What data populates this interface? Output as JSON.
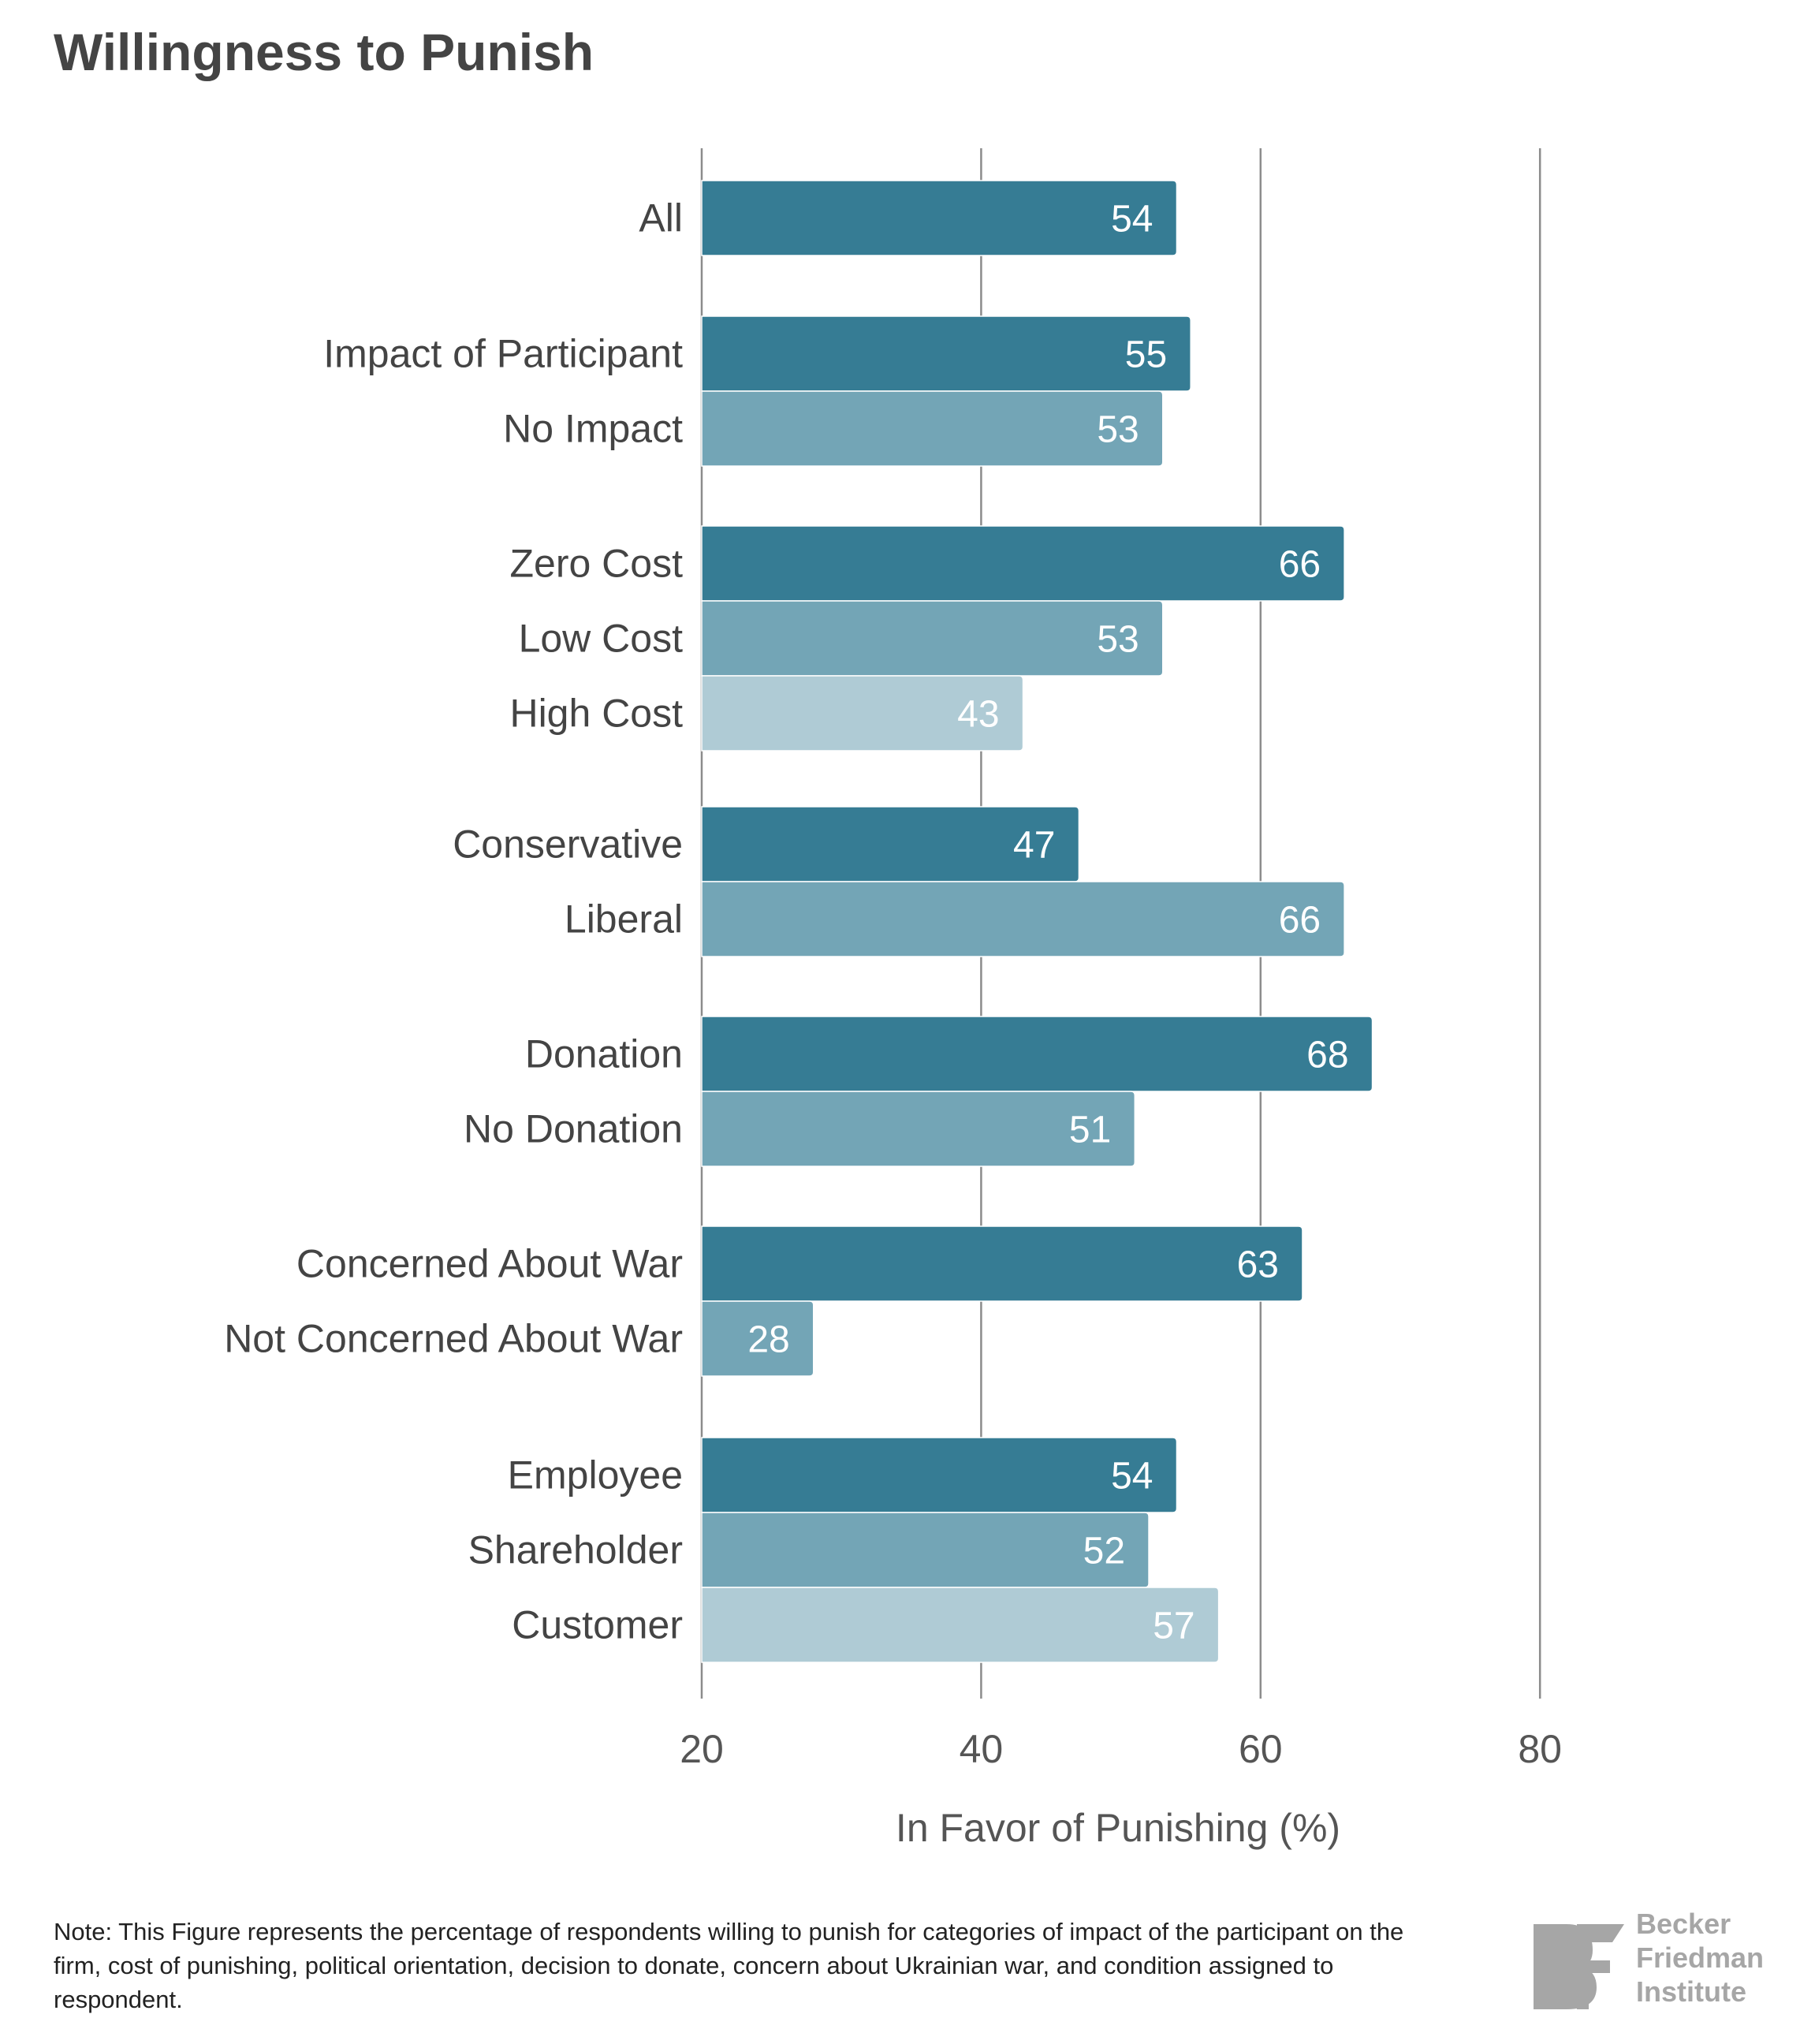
{
  "title": "Willingness to Punish",
  "note": "Note: This Figure represents the percentage of respondents willing to punish for categories of impact of the participant on the firm, cost of punishing, political orientation, decision to donate, concern about Ukrainian war, and condition assigned to respondent.",
  "logo": {
    "mark": "BF",
    "lines": [
      "Becker",
      "Friedman",
      "Institute"
    ]
  },
  "colors": {
    "dark": "#367c94",
    "mid": "#73a5b6",
    "light": "#afcbd5",
    "grid": "#8c8c8c",
    "text": "#444444"
  },
  "chart_data": {
    "type": "bar",
    "orientation": "horizontal",
    "title": "Willingness to Punish",
    "xlabel": "In Favor of Punishing (%)",
    "ylabel": "",
    "xlim": [
      20,
      80
    ],
    "xticks": [
      "20",
      "40",
      "60",
      "80"
    ],
    "grid": true,
    "groups": [
      {
        "bars": [
          {
            "label": "All",
            "value": 54,
            "shade": "dark"
          }
        ]
      },
      {
        "bars": [
          {
            "label": "Impact of Participant",
            "value": 55,
            "shade": "dark"
          },
          {
            "label": "No Impact",
            "value": 53,
            "shade": "mid"
          }
        ]
      },
      {
        "bars": [
          {
            "label": "Zero Cost",
            "value": 66,
            "shade": "dark"
          },
          {
            "label": "Low Cost",
            "value": 53,
            "shade": "mid"
          },
          {
            "label": "High Cost",
            "value": 43,
            "shade": "light"
          }
        ]
      },
      {
        "bars": [
          {
            "label": "Conservative",
            "value": 47,
            "shade": "dark"
          },
          {
            "label": "Liberal",
            "value": 66,
            "shade": "mid"
          }
        ]
      },
      {
        "bars": [
          {
            "label": "Donation",
            "value": 68,
            "shade": "dark"
          },
          {
            "label": "No Donation",
            "value": 51,
            "shade": "mid"
          }
        ]
      },
      {
        "bars": [
          {
            "label": "Concerned About War",
            "value": 63,
            "shade": "dark"
          },
          {
            "label": "Not Concerned About War",
            "value": 28,
            "shade": "mid"
          }
        ]
      },
      {
        "bars": [
          {
            "label": "Employee",
            "value": 54,
            "shade": "dark"
          },
          {
            "label": "Shareholder",
            "value": 52,
            "shade": "mid"
          },
          {
            "label": "Customer",
            "value": 57,
            "shade": "light"
          }
        ]
      }
    ]
  }
}
